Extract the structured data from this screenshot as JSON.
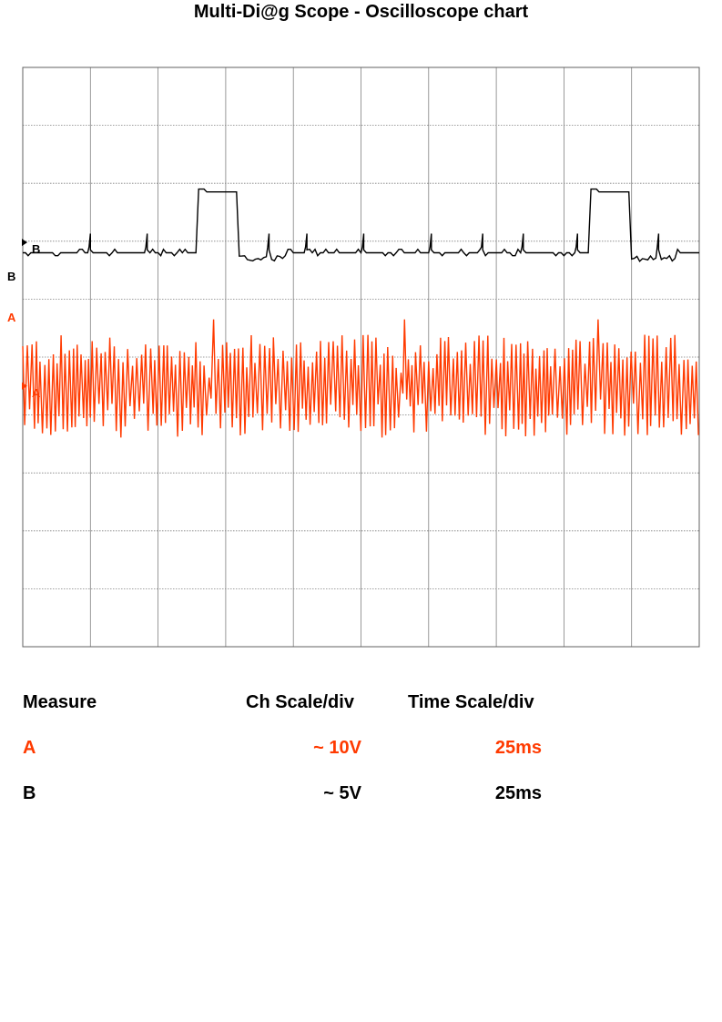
{
  "title": "Multi-Di@g Scope - Oscilloscope chart",
  "colors": {
    "channel_a": "#ff3a00",
    "channel_b": "#000000",
    "grid": "#808080",
    "frame": "#606060"
  },
  "chart_data": {
    "type": "line",
    "title": "Multi-Di@g Scope - Oscilloscope chart",
    "grid": true,
    "divisions": {
      "x": 10,
      "y": 10
    },
    "x_unit": "ms",
    "time_per_div_ms": 25,
    "xlim": [
      0,
      250
    ],
    "series": [
      {
        "name": "A",
        "scale_per_div": "~ 10V",
        "marker_label": "A",
        "color": "#ff3a00",
        "baseline_div": -0.5,
        "oscillation_amplitude_div": 0.85,
        "oscillation_period_ms": 1.55,
        "dropout_times_ms": [
          70,
          141,
          213
        ]
      },
      {
        "name": "B",
        "scale_per_div": "~ 5V",
        "marker_label": "B",
        "color": "#000000",
        "baseline_div": 1.8,
        "pulse_high_div": 2.85,
        "pulses_ms": [
          [
            65,
            79
          ],
          [
            210,
            224
          ]
        ],
        "spike_times_ms": [
          25,
          46,
          91,
          105,
          126,
          151,
          170,
          185,
          205,
          235
        ]
      }
    ]
  },
  "measurements": {
    "headers": [
      "Measure",
      "Ch Scale/div",
      "Time Scale/div"
    ],
    "rows": [
      {
        "measure": "A",
        "ch_scale": "~ 10V",
        "time_scale": "25ms"
      },
      {
        "measure": "B",
        "ch_scale": "~ 5V",
        "time_scale": "25ms"
      }
    ]
  }
}
